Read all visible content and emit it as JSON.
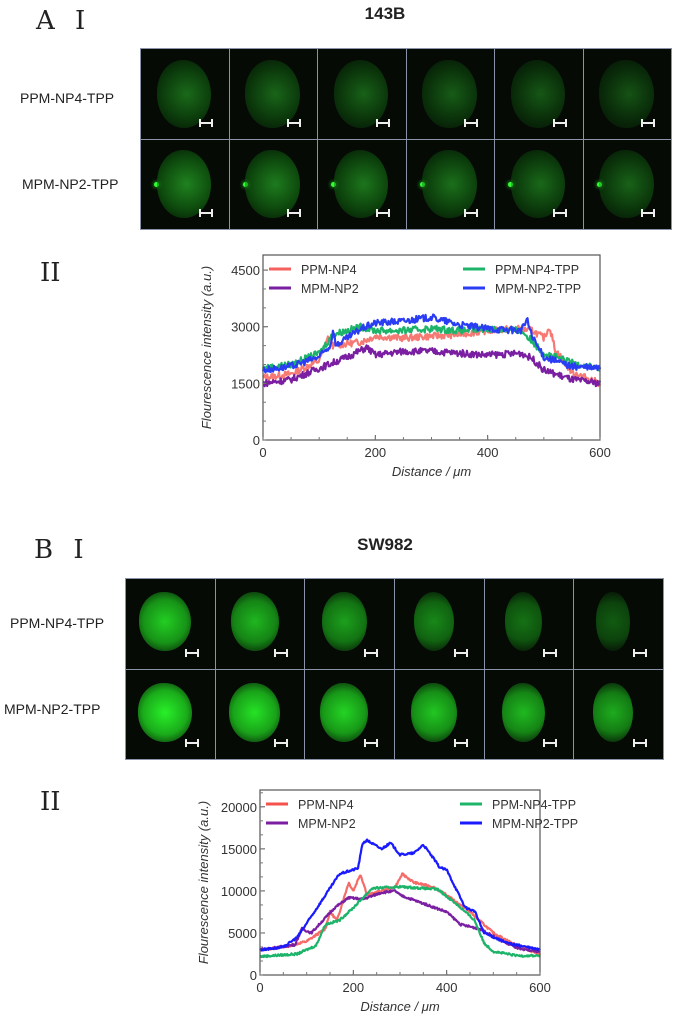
{
  "panel_a": {
    "label": "A Ⅰ",
    "title": "143B",
    "rows": [
      "PPM-NP4-TPP",
      "MPM-NP2-TPP"
    ],
    "sub_label": "II"
  },
  "panel_b": {
    "label": "B Ⅰ",
    "title": "SW982",
    "rows": [
      "PPM-NP4-TPP",
      "MPM-NP2-TPP"
    ],
    "sub_label": "II"
  },
  "chart_data": [
    {
      "type": "line",
      "title": "",
      "xlabel": "Distance / μm",
      "ylabel": "Flourescence intensity (a.u.)",
      "xlim": [
        0,
        600
      ],
      "ylim": [
        0,
        4900
      ],
      "xticks": [
        0,
        200,
        400,
        600
      ],
      "yticks": [
        0,
        1500,
        3000,
        4500
      ],
      "legend_placement": "top",
      "series": [
        {
          "name": "PPM-NP4",
          "color": "#f4615c",
          "points": [
            [
              0,
              1650
            ],
            [
              50,
              1750
            ],
            [
              100,
              2100
            ],
            [
              115,
              2700
            ],
            [
              125,
              2500
            ],
            [
              175,
              2600
            ],
            [
              200,
              2750
            ],
            [
              250,
              2700
            ],
            [
              300,
              2750
            ],
            [
              350,
              2800
            ],
            [
              400,
              2900
            ],
            [
              450,
              2950
            ],
            [
              480,
              2900
            ],
            [
              500,
              2700
            ],
            [
              510,
              3000
            ],
            [
              520,
              2400
            ],
            [
              550,
              1800
            ],
            [
              600,
              1500
            ]
          ]
        },
        {
          "name": "MPM-NP2",
          "color": "#7b1fa2",
          "points": [
            [
              0,
              1500
            ],
            [
              50,
              1600
            ],
            [
              100,
              1900
            ],
            [
              150,
              2200
            ],
            [
              185,
              2450
            ],
            [
              200,
              2250
            ],
            [
              250,
              2350
            ],
            [
              300,
              2350
            ],
            [
              350,
              2300
            ],
            [
              400,
              2250
            ],
            [
              460,
              2300
            ],
            [
              480,
              2150
            ],
            [
              500,
              1850
            ],
            [
              550,
              1600
            ],
            [
              600,
              1500
            ]
          ]
        },
        {
          "name": "PPM-NP4-TPP",
          "color": "#1db46a",
          "points": [
            [
              0,
              1900
            ],
            [
              50,
              2000
            ],
            [
              100,
              2300
            ],
            [
              125,
              2800
            ],
            [
              175,
              3000
            ],
            [
              200,
              2900
            ],
            [
              250,
              2900
            ],
            [
              300,
              2950
            ],
            [
              350,
              2900
            ],
            [
              400,
              2950
            ],
            [
              460,
              2900
            ],
            [
              480,
              2600
            ],
            [
              500,
              2300
            ],
            [
              550,
              2050
            ],
            [
              600,
              1900
            ]
          ]
        },
        {
          "name": "MPM-NP2-TPP",
          "color": "#2b3cf5",
          "points": [
            [
              0,
              1850
            ],
            [
              50,
              1950
            ],
            [
              100,
              2200
            ],
            [
              120,
              2500
            ],
            [
              125,
              2950
            ],
            [
              130,
              2500
            ],
            [
              175,
              2950
            ],
            [
              200,
              3100
            ],
            [
              250,
              3150
            ],
            [
              300,
              3250
            ],
            [
              350,
              3050
            ],
            [
              400,
              2950
            ],
            [
              460,
              2900
            ],
            [
              470,
              3200
            ],
            [
              480,
              2700
            ],
            [
              500,
              2200
            ],
            [
              550,
              1950
            ],
            [
              600,
              1900
            ]
          ]
        }
      ]
    },
    {
      "type": "line",
      "title": "",
      "xlabel": "Distance / μm",
      "ylabel": "Flourescence intensity (a.u.)",
      "xlim": [
        0,
        600
      ],
      "ylim": [
        0,
        22000
      ],
      "xticks": [
        0,
        200,
        400,
        600
      ],
      "yticks": [
        0,
        5000,
        10000,
        15000,
        20000
      ],
      "legend_placement": "top",
      "series": [
        {
          "name": "PPM-NP4",
          "color": "#f4504c",
          "points": [
            [
              0,
              3000
            ],
            [
              50,
              3300
            ],
            [
              100,
              4000
            ],
            [
              140,
              5500
            ],
            [
              150,
              7500
            ],
            [
              165,
              6500
            ],
            [
              190,
              11000
            ],
            [
              200,
              10000
            ],
            [
              215,
              12000
            ],
            [
              230,
              9500
            ],
            [
              260,
              10000
            ],
            [
              290,
              10500
            ],
            [
              305,
              12000
            ],
            [
              330,
              11000
            ],
            [
              370,
              10500
            ],
            [
              400,
              9500
            ],
            [
              450,
              7500
            ],
            [
              500,
              5000
            ],
            [
              550,
              3500
            ],
            [
              600,
              2500
            ]
          ]
        },
        {
          "name": "MPM-NP2",
          "color": "#7b1fa2",
          "points": [
            [
              0,
              3000
            ],
            [
              75,
              3600
            ],
            [
              90,
              5500
            ],
            [
              110,
              5000
            ],
            [
              160,
              8000
            ],
            [
              190,
              9200
            ],
            [
              220,
              9000
            ],
            [
              260,
              9800
            ],
            [
              290,
              10000
            ],
            [
              300,
              9500
            ],
            [
              350,
              8500
            ],
            [
              400,
              7500
            ],
            [
              430,
              6000
            ],
            [
              470,
              5500
            ],
            [
              520,
              4000
            ],
            [
              560,
              3000
            ],
            [
              600,
              2800
            ]
          ]
        },
        {
          "name": "PPM-NP4-TPP",
          "color": "#1db46a",
          "points": [
            [
              0,
              2200
            ],
            [
              80,
              2500
            ],
            [
              120,
              3500
            ],
            [
              140,
              6000
            ],
            [
              170,
              6500
            ],
            [
              200,
              8000
            ],
            [
              240,
              10300
            ],
            [
              300,
              10500
            ],
            [
              380,
              10200
            ],
            [
              420,
              8500
            ],
            [
              460,
              6500
            ],
            [
              480,
              3800
            ],
            [
              500,
              2800
            ],
            [
              550,
              2300
            ],
            [
              600,
              2300
            ]
          ]
        },
        {
          "name": "MPM-NP2-TPP",
          "color": "#1a1aff",
          "points": [
            [
              0,
              3000
            ],
            [
              50,
              3300
            ],
            [
              80,
              4500
            ],
            [
              120,
              7800
            ],
            [
              170,
              12000
            ],
            [
              210,
              12700
            ],
            [
              220,
              15700
            ],
            [
              230,
              16000
            ],
            [
              260,
              15000
            ],
            [
              280,
              15700
            ],
            [
              300,
              14300
            ],
            [
              330,
              14500
            ],
            [
              350,
              15500
            ],
            [
              370,
              14000
            ],
            [
              385,
              12800
            ],
            [
              400,
              12500
            ],
            [
              440,
              8000
            ],
            [
              460,
              7600
            ],
            [
              480,
              5000
            ],
            [
              530,
              3800
            ],
            [
              600,
              3000
            ]
          ]
        }
      ]
    }
  ]
}
